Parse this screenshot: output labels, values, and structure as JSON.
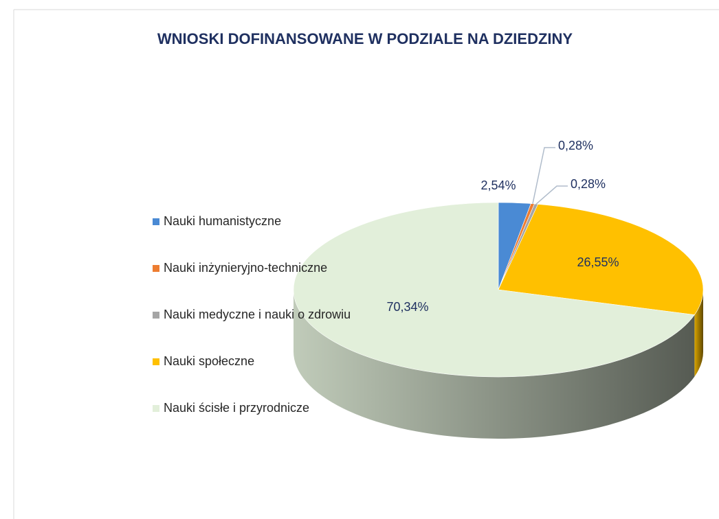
{
  "chart_data": {
    "type": "pie3d",
    "title": "WNIOSKI DOFINANSOWANE W PODZIALE NA DZIEDZINY",
    "categories": [
      "Nauki humanistyczne",
      "Nauki inżynieryjno-techniczne",
      "Nauki medyczne i nauki o zdrowiu",
      "Nauki społeczne",
      "Nauki ścisłe i przyrodnicze"
    ],
    "values": [
      2.54,
      0.28,
      0.28,
      26.55,
      70.34
    ],
    "value_labels": [
      "2,54%",
      "0,28%",
      "0,28%",
      "26,55%",
      "70,34%"
    ],
    "colors": [
      "#4a8ad4",
      "#ed7d31",
      "#a5a5a5",
      "#ffc000",
      "#e2efda"
    ],
    "legend": "left"
  }
}
